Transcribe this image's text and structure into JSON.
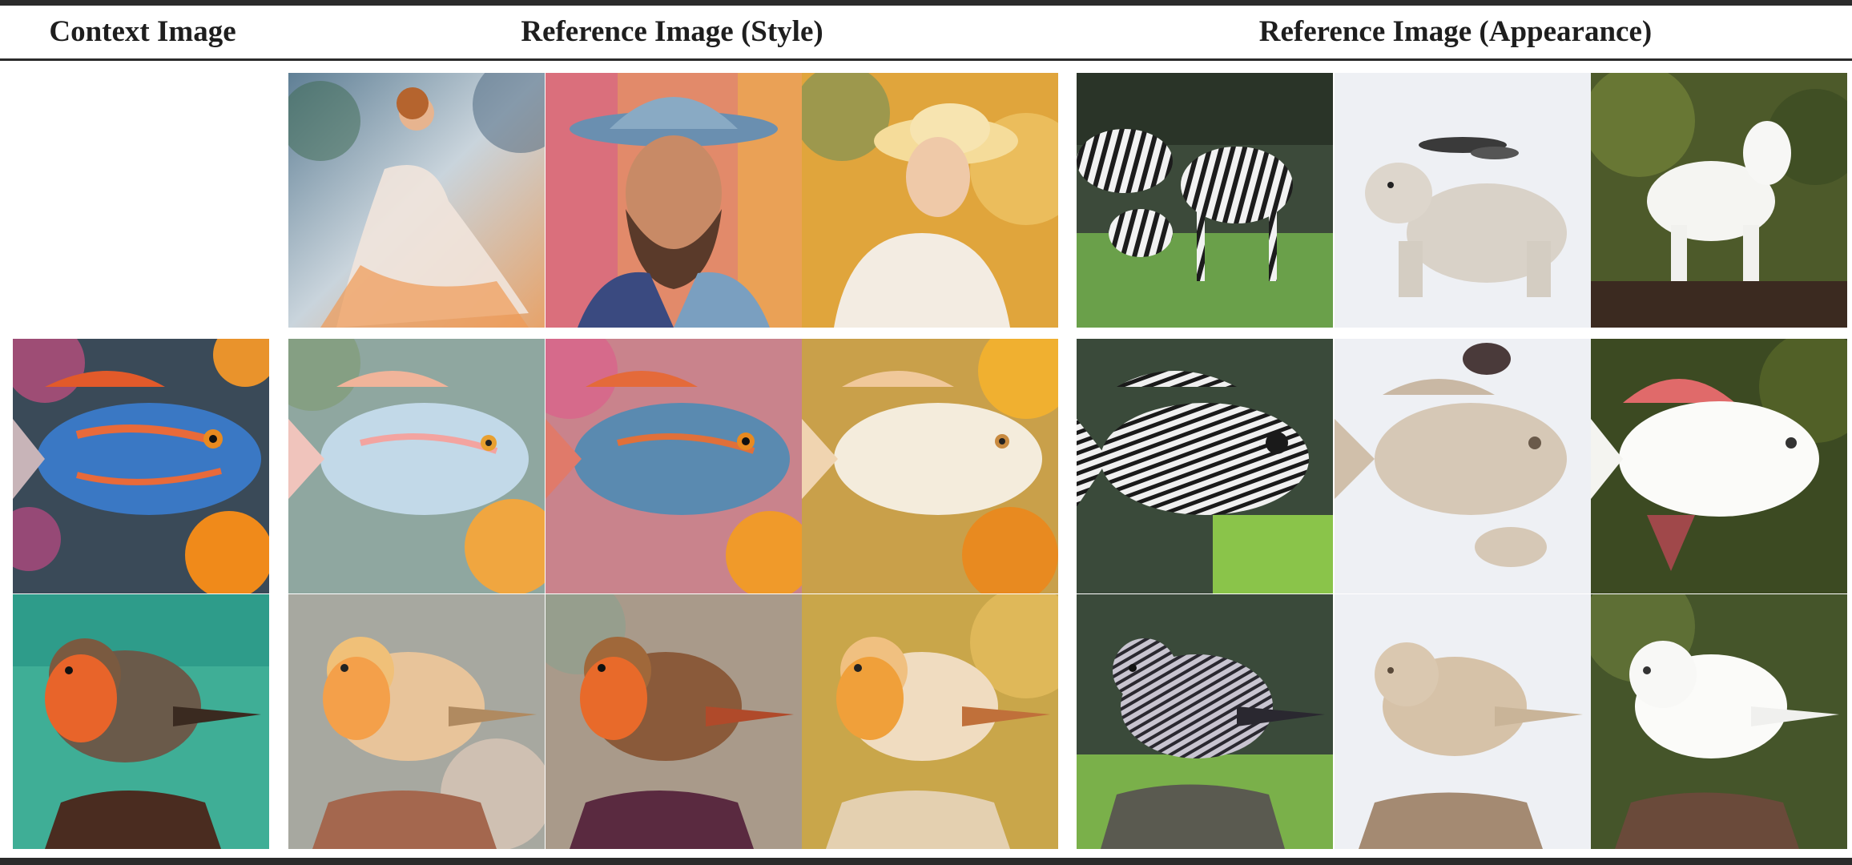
{
  "headers": {
    "context": "Context Image",
    "style": "Reference Image (Style)",
    "appearance": "Reference Image (Appearance)"
  },
  "tiles": {
    "style_refs": [
      "painted-dancer",
      "painted-bearded-man",
      "painted-woman-hat"
    ],
    "appearance_refs": [
      "zebras",
      "polar-bear",
      "white-goat"
    ],
    "contexts": [
      "fish",
      "robin"
    ]
  },
  "colors": {
    "rule": "#2b2b2b",
    "text": "#1e1e1e"
  }
}
